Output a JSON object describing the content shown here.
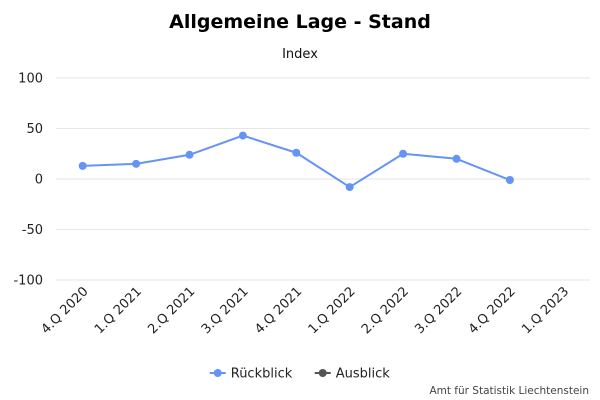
{
  "chart_data": {
    "type": "line",
    "title": "Allgemeine Lage - Stand",
    "ylabel": "Index",
    "ylim": [
      -100,
      100
    ],
    "yticks": [
      100,
      50,
      0,
      -50,
      -100
    ],
    "categories": [
      "4.Q 2020",
      "1.Q 2021",
      "2.Q 2021",
      "3.Q 2021",
      "4.Q 2021",
      "1.Q 2022",
      "2.Q 2022",
      "3.Q 2022",
      "4.Q 2022",
      "1.Q 2023"
    ],
    "series": [
      {
        "name": "Rückblick",
        "color": "#6494f5",
        "values": [
          13,
          15,
          24,
          43,
          26,
          -8,
          25,
          20,
          -1,
          null
        ]
      },
      {
        "name": "Ausblick",
        "color": "#555555",
        "values": [
          null,
          null,
          null,
          null,
          null,
          null,
          null,
          null,
          null,
          null
        ]
      }
    ],
    "grid": true,
    "legend": "bottom-center"
  },
  "credit": "Amt für Statistik Liechtenstein"
}
